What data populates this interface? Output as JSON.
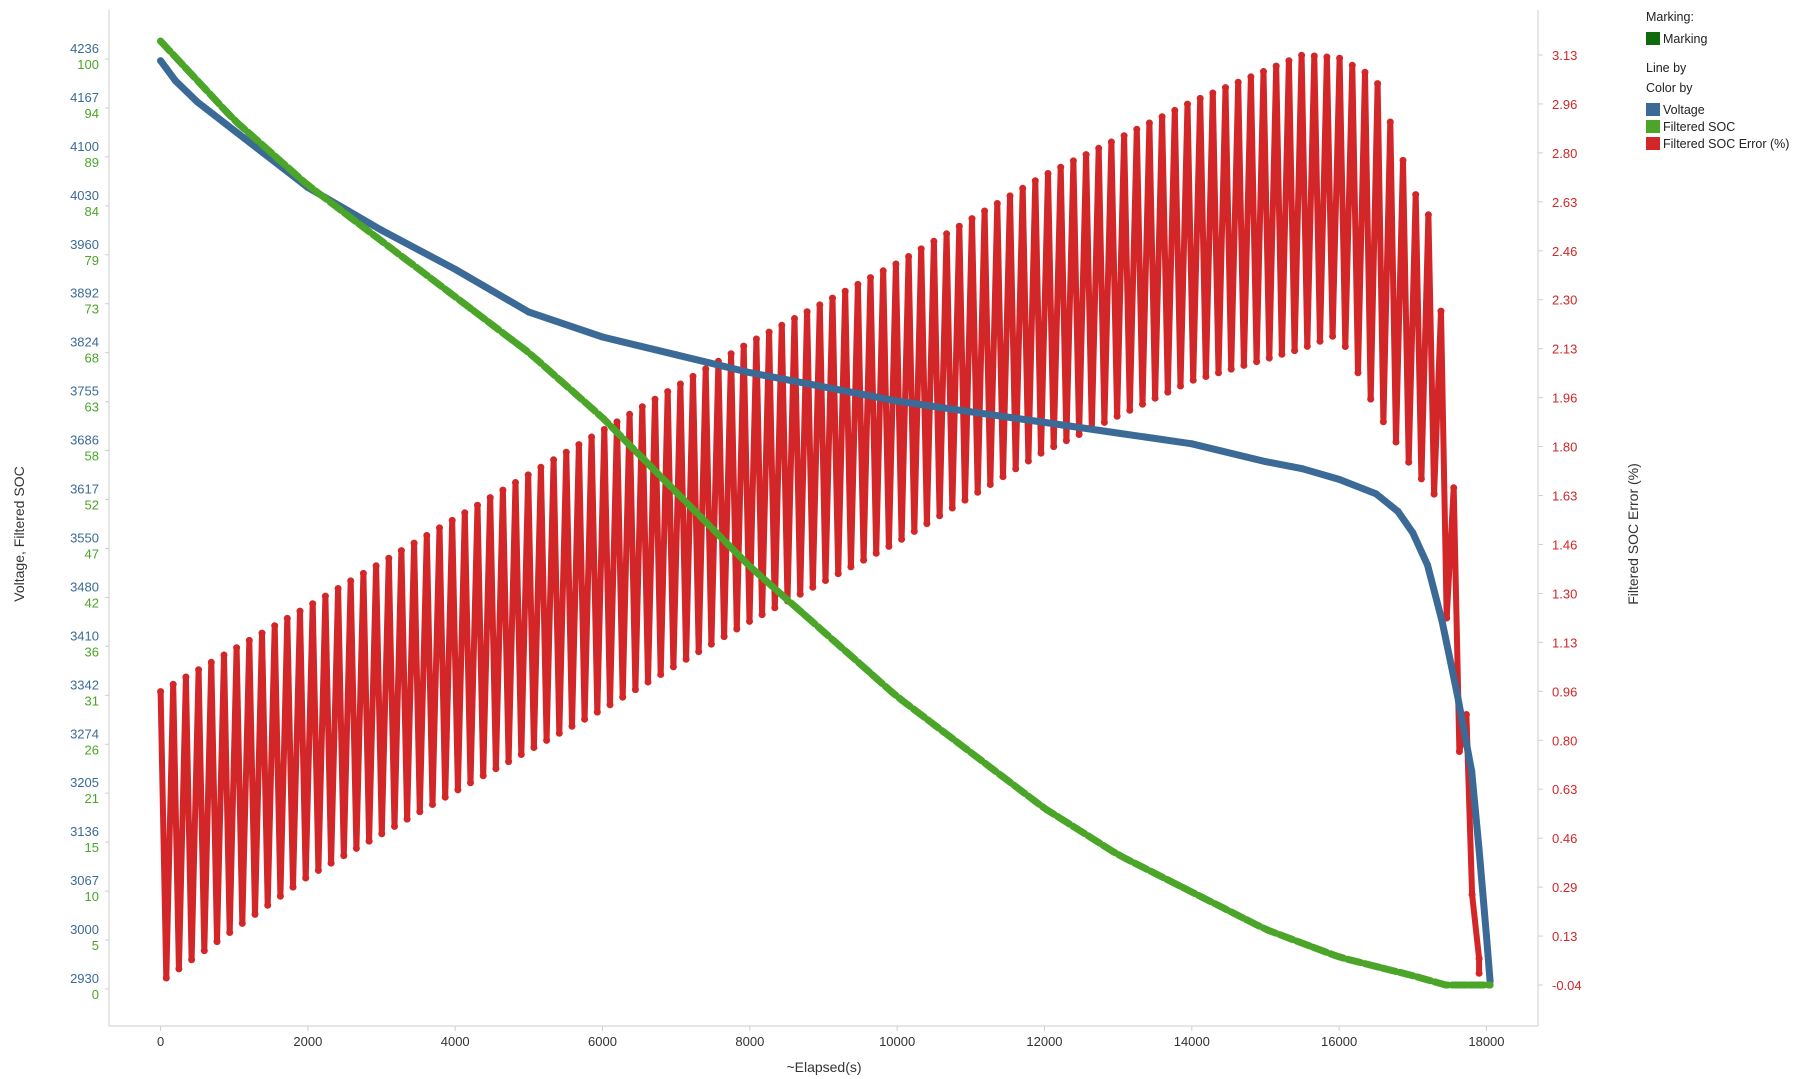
{
  "legend": {
    "marking_heading": "Marking:",
    "marking_item": "Marking",
    "marking_color": "#0e6b0e",
    "line_by": "Line by",
    "color_by": "Color by",
    "items": [
      {
        "label": "Voltage",
        "color": "#3b6a96"
      },
      {
        "label": "Filtered SOC",
        "color": "#4aa528"
      },
      {
        "label": "Filtered SOC Error (%)",
        "color": "#d22628"
      }
    ]
  },
  "chart_data": {
    "type": "line",
    "xlabel": "~Elapsed(s)",
    "ylabel_left": "Voltage, Filtered SOC",
    "ylabel_right": "Filtered SOC Error (%)",
    "x_ticks": [
      "0",
      "2000",
      "4000",
      "6000",
      "8000",
      "10000",
      "12000",
      "14000",
      "16000",
      "18000"
    ],
    "xlim": [
      -700,
      18700
    ],
    "grid": false,
    "legend_position": "right",
    "left_axis_voltage": {
      "ticks": [
        "4236",
        "4167",
        "4100",
        "4030",
        "3960",
        "3892",
        "3824",
        "3755",
        "3686",
        "3617",
        "3550",
        "3480",
        "3410",
        "3342",
        "3274",
        "3205",
        "3136",
        "3067",
        "3000",
        "2930"
      ],
      "ylim": [
        2930,
        4236
      ],
      "color": "#3b6a96"
    },
    "left_axis_soc": {
      "ticks": [
        "100",
        "94",
        "89",
        "84",
        "79",
        "73",
        "68",
        "63",
        "58",
        "52",
        "47",
        "42",
        "36",
        "31",
        "26",
        "21",
        "15",
        "10",
        "5",
        "0"
      ],
      "ylim": [
        0,
        100
      ],
      "color": "#4aa528"
    },
    "right_axis_error": {
      "ticks": [
        "3.13",
        "2.96",
        "2.80",
        "2.63",
        "2.46",
        "2.30",
        "2.13",
        "1.96",
        "1.80",
        "1.63",
        "1.46",
        "1.30",
        "1.13",
        "0.96",
        "0.80",
        "0.63",
        "0.46",
        "0.29",
        "0.13",
        "-0.04"
      ],
      "ylim": [
        -0.04,
        3.13
      ],
      "color": "#d22628"
    },
    "series": [
      {
        "name": "Voltage",
        "axis": "voltage",
        "color": "#3b6a96",
        "x": [
          0,
          200,
          500,
          1000,
          1500,
          2000,
          2500,
          3000,
          4000,
          5000,
          6000,
          7000,
          8000,
          9000,
          10000,
          11000,
          12000,
          13000,
          14000,
          15000,
          15500,
          16000,
          16500,
          16800,
          17000,
          17200,
          17400,
          17600,
          17800,
          17900,
          18000,
          18050
        ],
        "y": [
          4228,
          4200,
          4170,
          4130,
          4090,
          4050,
          4020,
          3990,
          3935,
          3875,
          3840,
          3815,
          3790,
          3770,
          3750,
          3735,
          3720,
          3705,
          3690,
          3665,
          3655,
          3640,
          3620,
          3595,
          3565,
          3520,
          3440,
          3340,
          3230,
          3120,
          3000,
          2935
        ]
      },
      {
        "name": "Filtered SOC",
        "axis": "soc",
        "color": "#4aa528",
        "x": [
          0,
          1000,
          2000,
          3000,
          4000,
          5000,
          6000,
          7000,
          8000,
          9000,
          10000,
          11000,
          12000,
          13000,
          14000,
          15000,
          16000,
          17000,
          17450,
          18050
        ],
        "y": [
          101.5,
          93,
          86,
          80,
          74,
          68,
          61,
          53,
          45,
          38,
          31,
          25,
          19,
          14,
          10,
          6,
          3,
          1,
          0,
          0
        ]
      },
      {
        "name": "Filtered SOC Error (%)",
        "axis": "error",
        "color": "#d22628",
        "style": "sawtooth",
        "cycles": 104,
        "x_start": 0,
        "x_end": 17900,
        "envelope": {
          "x": [
            0,
            2000,
            4000,
            6000,
            8000,
            10000,
            12000,
            14000,
            15500,
            16000,
            16500,
            17000,
            17300,
            17600,
            17900
          ],
          "upper": [
            0.96,
            1.25,
            1.55,
            1.85,
            2.15,
            2.42,
            2.72,
            2.97,
            3.13,
            3.12,
            3.05,
            2.67,
            2.55,
            1.5,
            0.05
          ],
          "lower": [
            -0.03,
            0.33,
            0.62,
            0.9,
            1.2,
            1.47,
            1.78,
            2.02,
            2.13,
            2.18,
            1.92,
            1.72,
            1.63,
            0.85,
            0.0
          ]
        }
      }
    ]
  }
}
